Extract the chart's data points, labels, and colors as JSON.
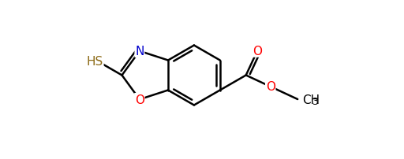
{
  "background_color": "#ffffff",
  "atom_colors": {
    "O": "#ff0000",
    "N": "#0000cc",
    "S": "#8b6914",
    "C": "#000000"
  },
  "figsize": [
    5.12,
    2.03
  ],
  "dpi": 100,
  "lw": 1.8
}
